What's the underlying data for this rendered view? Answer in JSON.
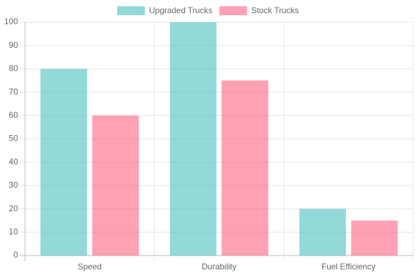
{
  "chart_data": {
    "type": "bar",
    "categories": [
      "Speed",
      "Durability",
      "Fuel Efficiency"
    ],
    "series": [
      {
        "name": "Upgraded Trucks",
        "color": "rgba(75, 192, 192, 0.6)",
        "values": [
          80,
          100,
          20
        ]
      },
      {
        "name": "Stock Trucks",
        "color": "rgba(255, 99, 132, 0.6)",
        "values": [
          60,
          75,
          15
        ]
      }
    ],
    "ylim": [
      0,
      100
    ],
    "yticks": [
      0,
      10,
      20,
      30,
      40,
      50,
      60,
      70,
      80,
      90,
      100
    ],
    "grid": true,
    "legend": "top"
  }
}
